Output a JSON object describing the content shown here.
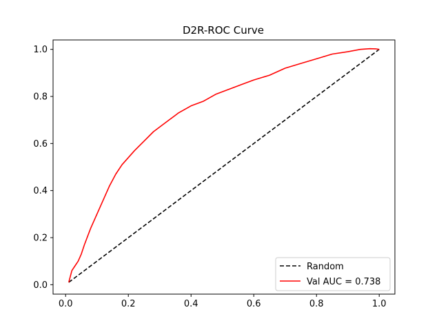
{
  "chart_data": {
    "type": "line",
    "title": "D2R-ROC Curve",
    "xlabel": "",
    "ylabel": "",
    "xlim": [
      -0.04,
      1.05
    ],
    "ylim": [
      -0.04,
      1.04
    ],
    "xticks": [
      0.0,
      0.2,
      0.4,
      0.6,
      0.8,
      1.0
    ],
    "yticks": [
      0.0,
      0.2,
      0.4,
      0.6,
      0.8,
      1.0
    ],
    "xtick_labels": [
      "0.0",
      "0.2",
      "0.4",
      "0.6",
      "0.8",
      "1.0"
    ],
    "ytick_labels": [
      "0.0",
      "0.2",
      "0.4",
      "0.6",
      "0.8",
      "1.0"
    ],
    "grid": false,
    "legend_position": "lower-right",
    "series": [
      {
        "name": "Random",
        "style": "dashed",
        "color": "#000000",
        "x": [
          0.01,
          1.0
        ],
        "y": [
          0.01,
          1.0
        ]
      },
      {
        "name": "Val AUC = 0.738",
        "style": "solid",
        "color": "#ff0000",
        "x": [
          0.01,
          0.02,
          0.03,
          0.04,
          0.05,
          0.06,
          0.08,
          0.1,
          0.12,
          0.14,
          0.16,
          0.18,
          0.2,
          0.22,
          0.25,
          0.28,
          0.3,
          0.33,
          0.36,
          0.4,
          0.44,
          0.48,
          0.52,
          0.56,
          0.6,
          0.65,
          0.7,
          0.75,
          0.8,
          0.85,
          0.9,
          0.94,
          0.97,
          0.99,
          1.0
        ],
        "y": [
          0.01,
          0.06,
          0.08,
          0.1,
          0.13,
          0.17,
          0.24,
          0.3,
          0.36,
          0.42,
          0.47,
          0.51,
          0.54,
          0.57,
          0.61,
          0.65,
          0.67,
          0.7,
          0.73,
          0.76,
          0.78,
          0.81,
          0.83,
          0.85,
          0.87,
          0.89,
          0.92,
          0.94,
          0.96,
          0.98,
          0.99,
          1.0,
          1.003,
          1.002,
          1.0
        ]
      }
    ]
  }
}
